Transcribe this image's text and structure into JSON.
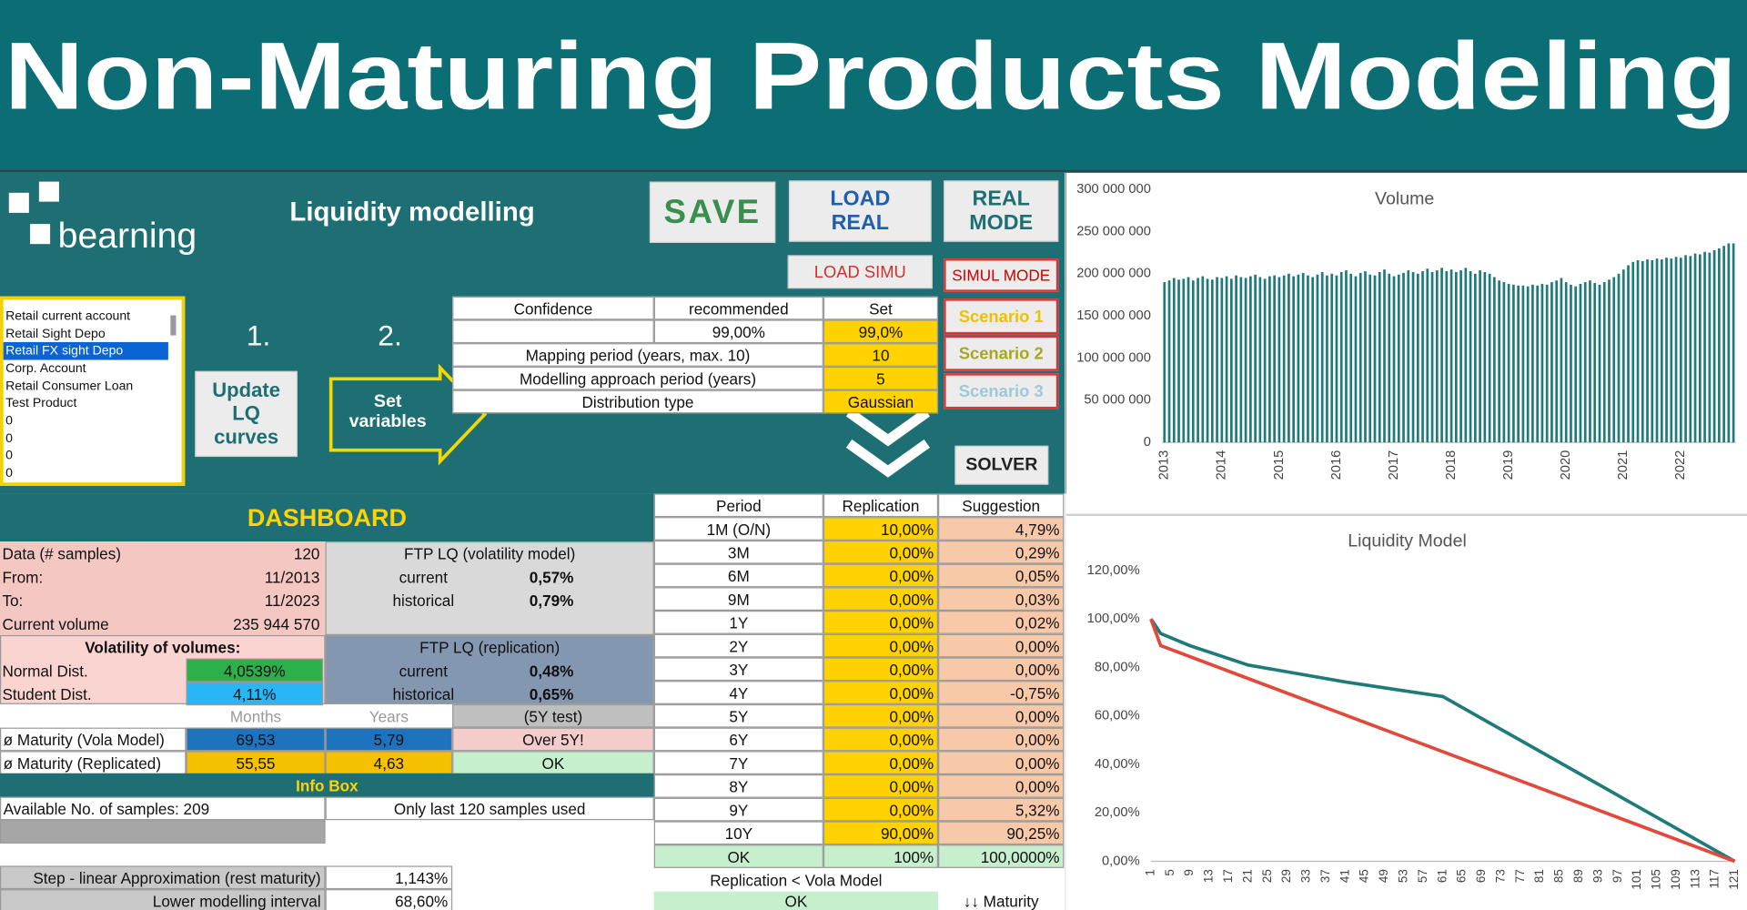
{
  "header": {
    "title": "Non-Maturing Products Modeling"
  },
  "app": {
    "logo": "bearning",
    "title": "Liquidity modelling",
    "buttons": {
      "save": "SAVE",
      "load_real": "LOAD REAL",
      "real_mode": "REAL MODE",
      "load_simu": "LOAD SIMU",
      "simul_mode": "SIMUL MODE",
      "scenario_1": "Scenario 1",
      "scenario_2": "Scenario 2",
      "scenario_3": "Scenario 3",
      "solver": "SOLVER",
      "update": "Update LQ curves",
      "set_variables": "Set variables"
    },
    "steps": [
      "1.",
      "2."
    ],
    "product_list": [
      "Retail current account",
      "Retail Sight Depo",
      "Retail FX sight Depo",
      "Corp. Account",
      "Retail Consumer Loan",
      "Test Product",
      "0",
      "0",
      "0",
      "0"
    ]
  },
  "settings": {
    "header": [
      "Confidence",
      "recommended",
      "Set"
    ],
    "confidence": {
      "recommended": "99,00%",
      "set": "99,0%"
    },
    "rows": [
      {
        "label": "Mapping period (years, max. 10)",
        "set": "10"
      },
      {
        "label": "Modelling approach period (years)",
        "set": "5"
      },
      {
        "label": "Distribution type",
        "set": "Gaussian"
      }
    ]
  },
  "dashboard": {
    "title": "DASHBOARD",
    "data_rows": [
      {
        "label": "Data (# samples)",
        "value": "120"
      },
      {
        "label": "From:",
        "value": "11/2013"
      },
      {
        "label": "To:",
        "value": "11/2023"
      },
      {
        "label": "Current volume",
        "value": "235 944 570"
      }
    ],
    "ftp_vola": {
      "title": "FTP LQ (volatility model)",
      "rows": [
        {
          "label": "current",
          "value": "0,57%"
        },
        {
          "label": "historical",
          "value": "0,79%"
        }
      ]
    },
    "volatility": {
      "title": "Volatility of volumes:",
      "rows": [
        {
          "label": "Normal Dist.",
          "value": "4,0539%"
        },
        {
          "label": "Student Dist.",
          "value": "4,11%"
        }
      ]
    },
    "ftp_repl": {
      "title": "FTP LQ (replication)",
      "rows": [
        {
          "label": "current",
          "value": "0,48%"
        },
        {
          "label": "historical",
          "value": "0,65%"
        }
      ]
    },
    "maturity": {
      "headers": [
        "Months",
        "Years",
        "(5Y test)"
      ],
      "rows": [
        {
          "label": "ø Maturity (Vola Model)",
          "months": "69,53",
          "years": "5,79",
          "test": "Over 5Y!"
        },
        {
          "label": "ø Maturity (Replicated)",
          "months": "55,55",
          "years": "4,63",
          "test": "OK"
        }
      ]
    },
    "info_box": {
      "title": "Info Box",
      "left": "Available No. of samples: 209",
      "right": "Only last 120 samples used"
    },
    "approx": [
      {
        "label": "Step - linear Approximation (rest maturity)",
        "value": "1,143%"
      },
      {
        "label": "Lower modelling interval",
        "value": "68,60%"
      }
    ]
  },
  "replication": {
    "header": [
      "Period",
      "Replication",
      "Suggestion"
    ],
    "rows": [
      [
        "1M (O/N)",
        "10,00%",
        "4,79%"
      ],
      [
        "3M",
        "0,00%",
        "0,29%"
      ],
      [
        "6M",
        "0,00%",
        "0,05%"
      ],
      [
        "9M",
        "0,00%",
        "0,03%"
      ],
      [
        "1Y",
        "0,00%",
        "0,02%"
      ],
      [
        "2Y",
        "0,00%",
        "0,00%"
      ],
      [
        "3Y",
        "0,00%",
        "0,00%"
      ],
      [
        "4Y",
        "0,00%",
        "-0,75%"
      ],
      [
        "5Y",
        "0,00%",
        "0,00%"
      ],
      [
        "6Y",
        "0,00%",
        "0,00%"
      ],
      [
        "7Y",
        "0,00%",
        "0,00%"
      ],
      [
        "8Y",
        "0,00%",
        "0,00%"
      ],
      [
        "9Y",
        "0,00%",
        "5,32%"
      ],
      [
        "10Y",
        "90,00%",
        "90,25%"
      ]
    ],
    "total": [
      "OK",
      "100%",
      "100,0000%"
    ],
    "check_label": "Replication < Vola Model",
    "check": "OK",
    "maturity": "↓↓ Maturity"
  },
  "chart_data": [
    {
      "type": "bar",
      "title": "Volume",
      "color": "#1f7a7a",
      "grid": false,
      "categories": [
        "2013",
        null,
        null,
        null,
        null,
        null,
        null,
        null,
        null,
        null,
        null,
        null,
        "2014",
        null,
        null,
        null,
        null,
        null,
        null,
        null,
        null,
        null,
        null,
        null,
        "2015",
        null,
        null,
        null,
        null,
        null,
        null,
        null,
        null,
        null,
        null,
        null,
        "2016",
        null,
        null,
        null,
        null,
        null,
        null,
        null,
        null,
        null,
        null,
        null,
        "2017",
        null,
        null,
        null,
        null,
        null,
        null,
        null,
        null,
        null,
        null,
        null,
        "2018",
        null,
        null,
        null,
        null,
        null,
        null,
        null,
        null,
        null,
        null,
        null,
        "2019",
        null,
        null,
        null,
        null,
        null,
        null,
        null,
        null,
        null,
        null,
        null,
        "2020",
        null,
        null,
        null,
        null,
        null,
        null,
        null,
        null,
        null,
        null,
        null,
        "2021",
        null,
        null,
        null,
        null,
        null,
        null,
        null,
        null,
        null,
        null,
        null,
        "2022",
        null,
        null,
        null,
        null,
        null,
        null,
        null,
        null,
        null,
        null,
        null
      ],
      "values": [
        190000000.0,
        192000000.0,
        195000000.0,
        193000000.0,
        194000000.0,
        196000000.0,
        192000000.0,
        195000000.0,
        197000000.0,
        194000000.0,
        193000000.0,
        196000000.0,
        195000000.0,
        197000000.0,
        194000000.0,
        198000000.0,
        196000000.0,
        195000000.0,
        197000000.0,
        199000000.0,
        196000000.0,
        194000000.0,
        197000000.0,
        198000000.0,
        196000000.0,
        198000000.0,
        200000000.0,
        197000000.0,
        199000000.0,
        201000000.0,
        198000000.0,
        196000000.0,
        199000000.0,
        202000000.0,
        198000000.0,
        200000000.0,
        198000000.0,
        202000000.0,
        204000000.0,
        200000000.0,
        197000000.0,
        201000000.0,
        203000000.0,
        199000000.0,
        198000000.0,
        202000000.0,
        205000000.0,
        200000000.0,
        197000000.0,
        199000000.0,
        201000000.0,
        204000000.0,
        202000000.0,
        200000000.0,
        203000000.0,
        206000000.0,
        202000000.0,
        204000000.0,
        207000000.0,
        203000000.0,
        205000000.0,
        202000000.0,
        204000000.0,
        207000000.0,
        203000000.0,
        200000000.0,
        204000000.0,
        202000000.0,
        200000000.0,
        196000000.0,
        192000000.0,
        190000000.0,
        188000000.0,
        187000000.0,
        186000000.0,
        186000000.0,
        185000000.0,
        187000000.0,
        186000000.0,
        188000000.0,
        187000000.0,
        190000000.0,
        192000000.0,
        195000000.0,
        190000000.0,
        187000000.0,
        185000000.0,
        188000000.0,
        190000000.0,
        192000000.0,
        189000000.0,
        187000000.0,
        190000000.0,
        193000000.0,
        196000000.0,
        200000000.0,
        205000000.0,
        210000000.0,
        214000000.0,
        216000000.0,
        215000000.0,
        217000000.0,
        216000000.0,
        218000000.0,
        217000000.0,
        219000000.0,
        218000000.0,
        220000000.0,
        219000000.0,
        222000000.0,
        221000000.0,
        224000000.0,
        223000000.0,
        226000000.0,
        225000000.0,
        228000000.0,
        230000000.0,
        233000000.0,
        236000000.0,
        236000000.0
      ],
      "ylim": [
        0,
        300000000.0
      ],
      "yticks": [
        0,
        {
          "value": 50000000.0,
          "label": "50 000 000"
        },
        {
          "value": 100000000.0,
          "label": "100 000 000"
        },
        {
          "value": 150000000.0,
          "label": "150 000 000"
        },
        {
          "value": 200000000.0,
          "label": "200 000 000"
        },
        {
          "value": 250000000.0,
          "label": "250 000 000"
        },
        {
          "value": 300000000.0,
          "label": "300 000 000"
        }
      ]
    },
    {
      "type": "line",
      "title": "Liquidity Model",
      "grid": false,
      "xlim": [
        1,
        121
      ],
      "xticks": [
        1,
        5,
        9,
        13,
        17,
        21,
        25,
        29,
        33,
        37,
        41,
        45,
        49,
        53,
        57,
        61,
        65,
        69,
        73,
        77,
        81,
        85,
        89,
        93,
        97,
        101,
        105,
        109,
        113,
        117,
        121
      ],
      "ylim": [
        0,
        120
      ],
      "yticks": [
        {
          "value": 0,
          "label": "0,00%"
        },
        {
          "value": 20,
          "label": "20,00%"
        },
        {
          "value": 40,
          "label": "40,00%"
        },
        {
          "value": 60,
          "label": "60,00%"
        },
        {
          "value": 80,
          "label": "80,00%"
        },
        {
          "value": 100,
          "label": "100,00%"
        },
        {
          "value": 120,
          "label": "120,00%"
        }
      ],
      "series": [
        {
          "color": "#1f7a7a",
          "x": [
            1,
            3,
            9,
            21,
            41,
            61,
            121
          ],
          "values": [
            100,
            94,
            89,
            81,
            74,
            68,
            0
          ]
        },
        {
          "color": "#e0493b",
          "x": [
            1,
            3,
            121
          ],
          "values": [
            100,
            89,
            0
          ]
        }
      ]
    }
  ]
}
